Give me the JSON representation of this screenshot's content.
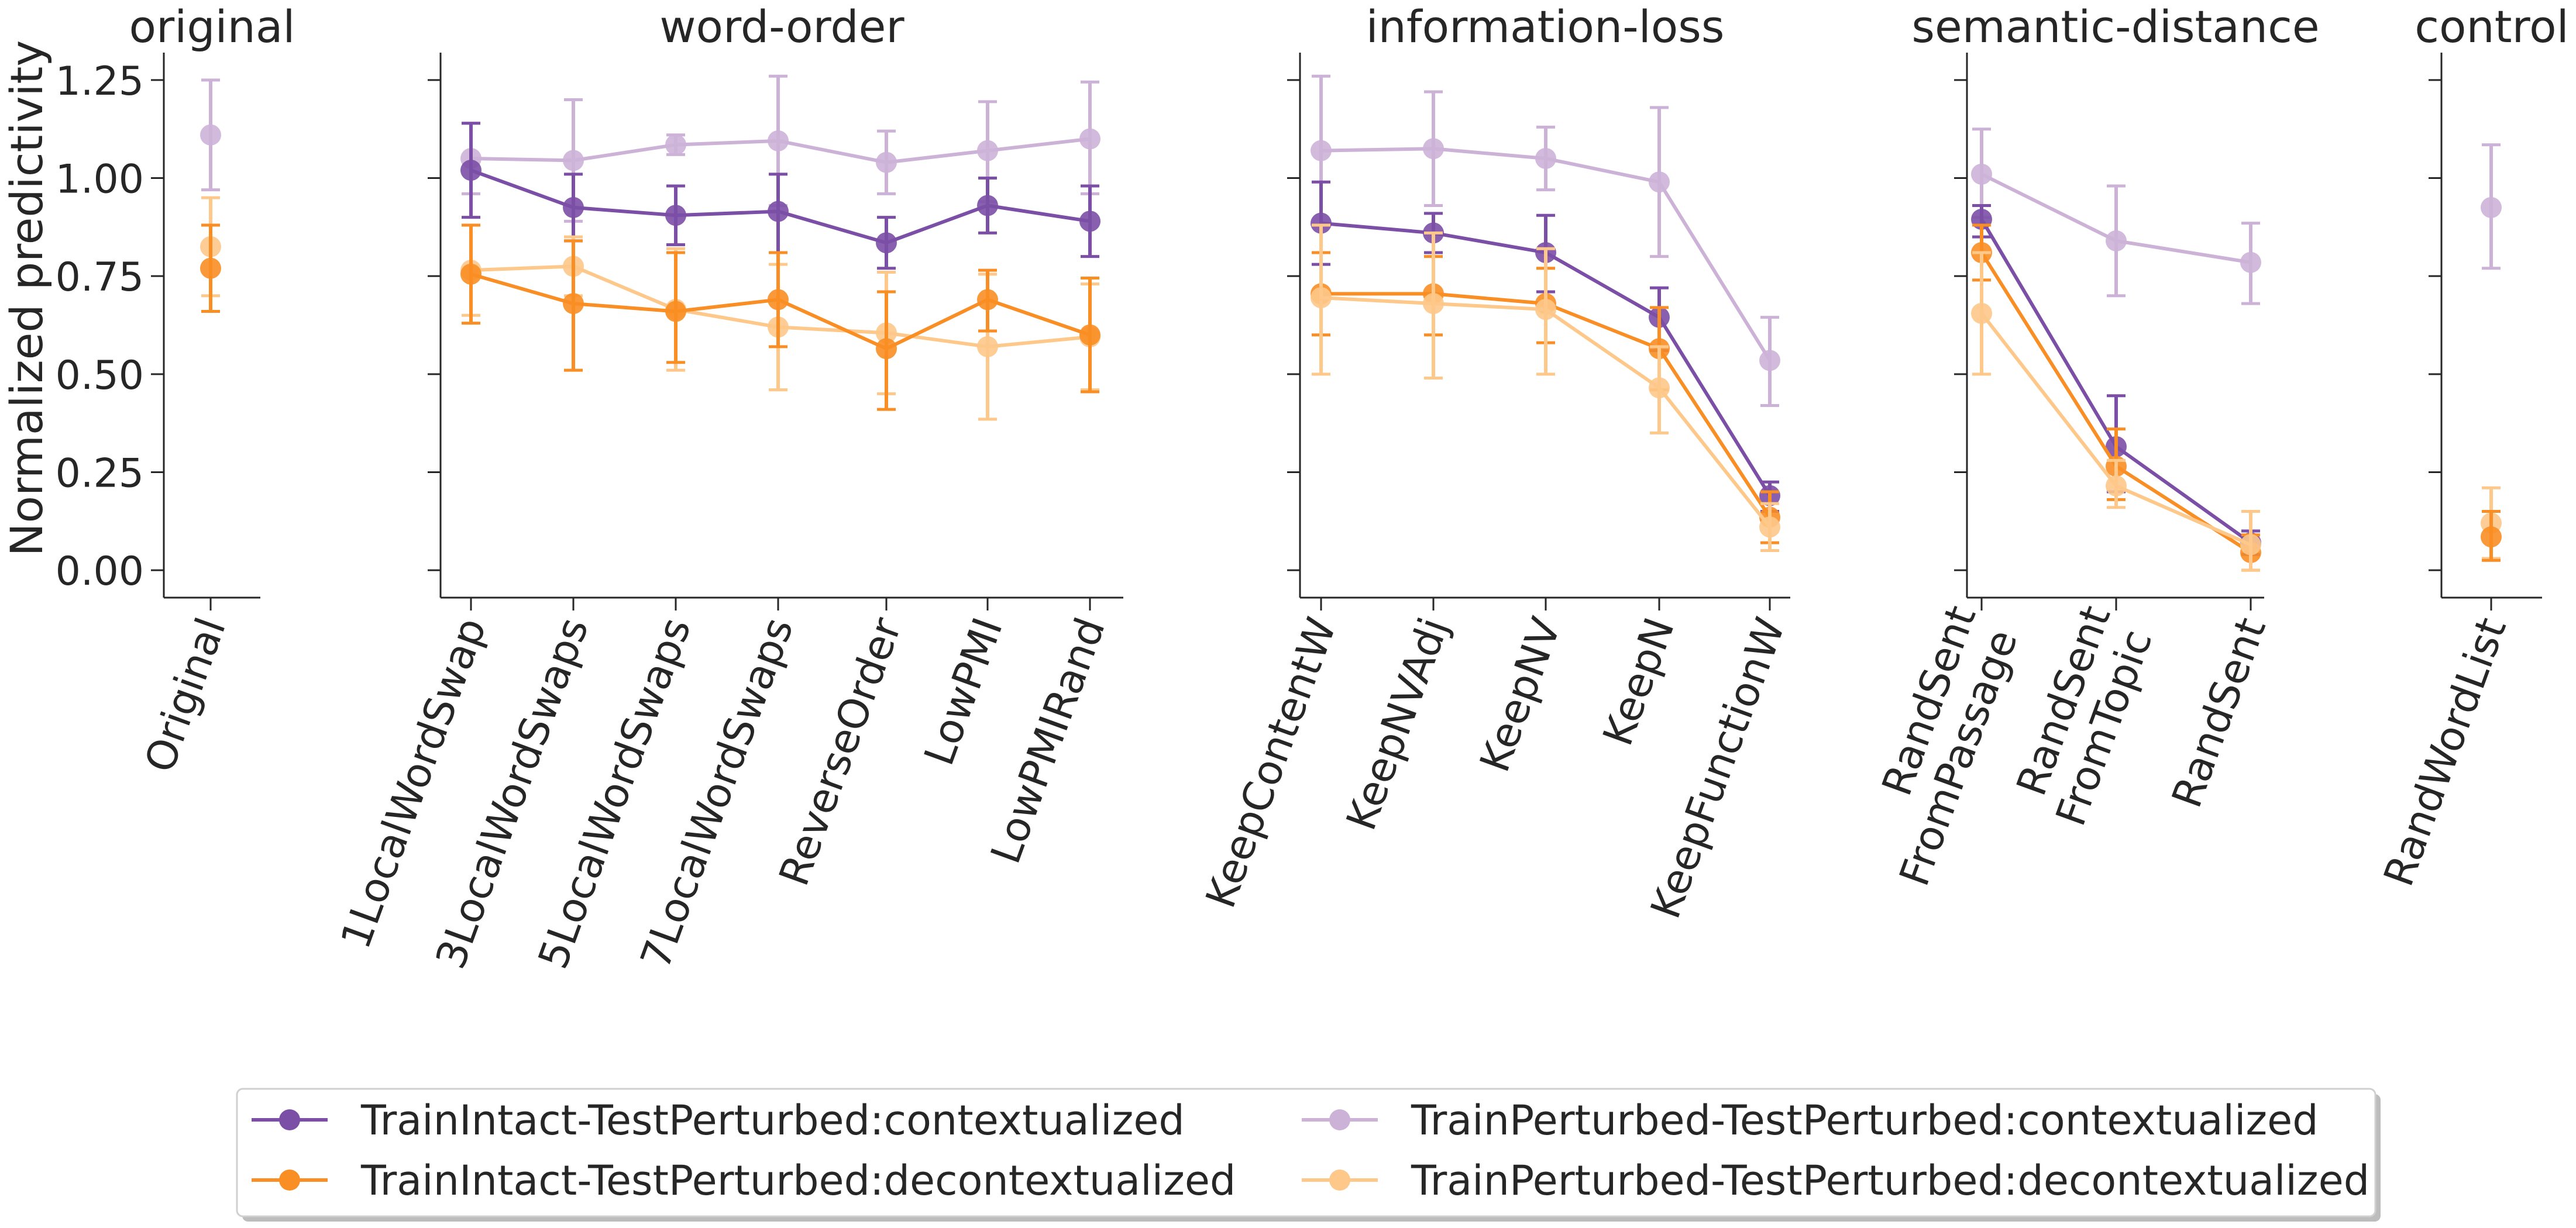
{
  "chart_data": {
    "type": "line",
    "ylabel": "Normalized predictivity",
    "ylim": [
      -0.07,
      1.32
    ],
    "yticks": [
      0.0,
      0.25,
      0.5,
      0.75,
      1.0,
      1.25
    ],
    "ytick_labels": [
      "0.00",
      "0.25",
      "0.50",
      "0.75",
      "1.00",
      "1.25"
    ],
    "grid": false,
    "legend_placement": "bottom-center",
    "colors": {
      "TrainIntact-TestPerturbed:contextualized": "#7b4fa6",
      "TrainIntact-TestPerturbed:decontextualized": "#f98e24",
      "TrainPerturbed-TestPerturbed:contextualized": "#cdb2d8",
      "TrainPerturbed-TestPerturbed:decontextualized": "#fdc88a"
    },
    "legend": [
      "TrainIntact-TestPerturbed:contextualized",
      "TrainIntact-TestPerturbed:decontextualized",
      "TrainPerturbed-TestPerturbed:contextualized",
      "TrainPerturbed-TestPerturbed:decontextualized"
    ],
    "panels": [
      {
        "title": "original",
        "categories": [
          [
            "Original"
          ]
        ],
        "series": [
          {
            "name": "TrainPerturbed-TestPerturbed:contextualized",
            "values": [
              1.11
            ],
            "err_low": [
              0.97
            ],
            "err_high": [
              1.25
            ]
          },
          {
            "name": "TrainPerturbed-TestPerturbed:decontextualized",
            "values": [
              0.825
            ],
            "err_low": [
              0.7
            ],
            "err_high": [
              0.95
            ]
          },
          {
            "name": "TrainIntact-TestPerturbed:decontextualized",
            "values": [
              0.77
            ],
            "err_low": [
              0.66
            ],
            "err_high": [
              0.88
            ]
          }
        ]
      },
      {
        "title": "word-order",
        "categories": [
          [
            "1LocalWordSwap"
          ],
          [
            "3LocalWordSwaps"
          ],
          [
            "5LocalWordSwaps"
          ],
          [
            "7LocalWordSwaps"
          ],
          [
            "ReverseOrder"
          ],
          [
            "LowPMI"
          ],
          [
            "LowPMIRand"
          ]
        ],
        "series": [
          {
            "name": "TrainPerturbed-TestPerturbed:contextualized",
            "values": [
              1.05,
              1.045,
              1.085,
              1.095,
              1.04,
              1.07,
              1.1
            ],
            "err_low": [
              0.96,
              0.89,
              1.06,
              0.93,
              0.96,
              0.94,
              0.96
            ],
            "err_high": [
              1.14,
              1.2,
              1.11,
              1.26,
              1.12,
              1.195,
              1.245
            ]
          },
          {
            "name": "TrainIntact-TestPerturbed:contextualized",
            "values": [
              1.02,
              0.925,
              0.905,
              0.915,
              0.835,
              0.93,
              0.89
            ],
            "err_low": [
              0.9,
              0.84,
              0.83,
              0.81,
              0.77,
              0.86,
              0.8
            ],
            "err_high": [
              1.14,
              1.01,
              0.98,
              1.01,
              0.9,
              1.0,
              0.98
            ]
          },
          {
            "name": "TrainPerturbed-TestPerturbed:decontextualized",
            "values": [
              0.765,
              0.775,
              0.665,
              0.62,
              0.605,
              0.57,
              0.595
            ],
            "err_low": [
              0.65,
              0.7,
              0.51,
              0.46,
              0.45,
              0.385,
              0.46
            ],
            "err_high": [
              0.88,
              0.85,
              0.82,
              0.78,
              0.76,
              0.755,
              0.73
            ]
          },
          {
            "name": "TrainIntact-TestPerturbed:decontextualized",
            "values": [
              0.755,
              0.68,
              0.66,
              0.69,
              0.565,
              0.69,
              0.6
            ],
            "err_low": [
              0.63,
              0.51,
              0.53,
              0.57,
              0.41,
              0.61,
              0.455
            ],
            "err_high": [
              0.88,
              0.84,
              0.81,
              0.81,
              0.71,
              0.765,
              0.745
            ]
          }
        ]
      },
      {
        "title": "information-loss",
        "categories": [
          [
            "KeepContentW"
          ],
          [
            "KeepNVAdj"
          ],
          [
            "KeepNV"
          ],
          [
            "KeepN"
          ],
          [
            "KeepFunctionW"
          ]
        ],
        "series": [
          {
            "name": "TrainPerturbed-TestPerturbed:contextualized",
            "values": [
              1.07,
              1.075,
              1.05,
              0.99,
              0.535
            ],
            "err_low": [
              0.88,
              0.93,
              0.97,
              0.8,
              0.42
            ],
            "err_high": [
              1.26,
              1.22,
              1.13,
              1.18,
              0.645
            ]
          },
          {
            "name": "TrainIntact-TestPerturbed:contextualized",
            "values": [
              0.885,
              0.86,
              0.81,
              0.645,
              0.19
            ],
            "err_low": [
              0.78,
              0.81,
              0.71,
              0.56,
              0.15
            ],
            "err_high": [
              0.99,
              0.91,
              0.905,
              0.72,
              0.225
            ]
          },
          {
            "name": "TrainIntact-TestPerturbed:decontextualized",
            "values": [
              0.705,
              0.705,
              0.68,
              0.565,
              0.135
            ],
            "err_low": [
              0.6,
              0.6,
              0.58,
              0.46,
              0.07
            ],
            "err_high": [
              0.81,
              0.8,
              0.77,
              0.67,
              0.2
            ]
          },
          {
            "name": "TrainPerturbed-TestPerturbed:decontextualized",
            "values": [
              0.695,
              0.68,
              0.665,
              0.465,
              0.11
            ],
            "err_low": [
              0.5,
              0.49,
              0.5,
              0.35,
              0.05
            ],
            "err_high": [
              0.88,
              0.86,
              0.82,
              0.57,
              0.17
            ]
          }
        ]
      },
      {
        "title": "semantic-distance",
        "categories": [
          [
            "RandSent",
            "FromPassage"
          ],
          [
            "RandSent",
            "FromTopic"
          ],
          [
            "RandSent"
          ]
        ],
        "series": [
          {
            "name": "TrainPerturbed-TestPerturbed:contextualized",
            "values": [
              1.01,
              0.84,
              0.785
            ],
            "err_low": [
              0.9,
              0.7,
              0.68
            ],
            "err_high": [
              1.125,
              0.98,
              0.885
            ]
          },
          {
            "name": "TrainIntact-TestPerturbed:contextualized",
            "values": [
              0.895,
              0.315,
              0.07
            ],
            "err_low": [
              0.85,
              0.2,
              0.04
            ],
            "err_high": [
              0.93,
              0.445,
              0.1
            ]
          },
          {
            "name": "TrainIntact-TestPerturbed:decontextualized",
            "values": [
              0.81,
              0.265,
              0.045
            ],
            "err_low": [
              0.74,
              0.18,
              0.0
            ],
            "err_high": [
              0.88,
              0.36,
              0.09
            ]
          },
          {
            "name": "TrainPerturbed-TestPerturbed:decontextualized",
            "values": [
              0.655,
              0.215,
              0.065
            ],
            "err_low": [
              0.5,
              0.16,
              0.0
            ],
            "err_high": [
              0.81,
              0.28,
              0.15
            ]
          }
        ]
      },
      {
        "title": "control",
        "categories": [
          [
            "RandWordList"
          ]
        ],
        "series": [
          {
            "name": "TrainPerturbed-TestPerturbed:contextualized",
            "values": [
              0.925
            ],
            "err_low": [
              0.77
            ],
            "err_high": [
              1.085
            ]
          },
          {
            "name": "TrainPerturbed-TestPerturbed:decontextualized",
            "values": [
              0.12
            ],
            "err_low": [
              0.03
            ],
            "err_high": [
              0.21
            ]
          },
          {
            "name": "TrainIntact-TestPerturbed:decontextualized",
            "values": [
              0.085
            ],
            "err_low": [
              0.025
            ],
            "err_high": [
              0.15
            ]
          }
        ]
      }
    ]
  }
}
